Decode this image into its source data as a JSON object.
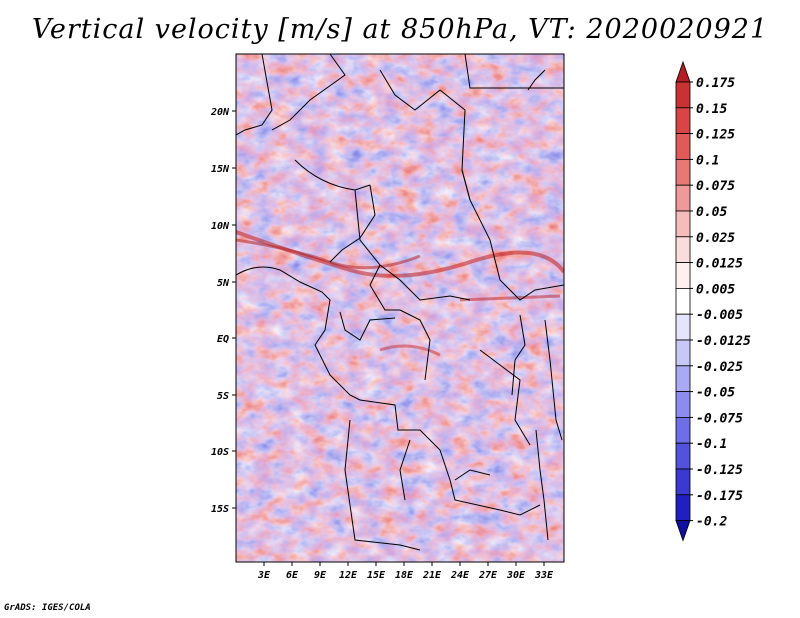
{
  "title": "Vertical velocity [m/s] at 850hPa, VT: 2020020921",
  "credit": "GrADS: IGES/COLA",
  "map": {
    "lat_labels": [
      "20N",
      "15N",
      "10N",
      "5N",
      "EQ",
      "5S",
      "10S",
      "15S"
    ],
    "lon_labels": [
      "3E",
      "6E",
      "9E",
      "12E",
      "15E",
      "18E",
      "21E",
      "24E",
      "27E",
      "30E",
      "33E"
    ],
    "field_colors": {
      "strong_up": "#d62728",
      "up": "#f0a0a0",
      "neutral": "#ffffff",
      "down": "#a8a8f0",
      "strong_down": "#4a4ad8"
    }
  },
  "colorbar": {
    "labels": [
      "0.175",
      "0.15",
      "0.125",
      "0.1",
      "0.075",
      "0.05",
      "0.025",
      "0.0125",
      "0.005",
      "-0.005",
      "-0.0125",
      "-0.025",
      "-0.05",
      "-0.075",
      "-0.1",
      "-0.125",
      "-0.175",
      "-0.2"
    ],
    "colors": [
      "#b21e23",
      "#c83232",
      "#d94545",
      "#e05a5a",
      "#e87878",
      "#ef9a9a",
      "#f6bcbc",
      "#fadcdc",
      "#fff0f0",
      "#ffffff",
      "#e4e4fc",
      "#c8c8f8",
      "#aaaaf4",
      "#8c8cee",
      "#6e6ee6",
      "#5252dc",
      "#3a3ad0",
      "#2020c0",
      "#1010a0"
    ]
  }
}
